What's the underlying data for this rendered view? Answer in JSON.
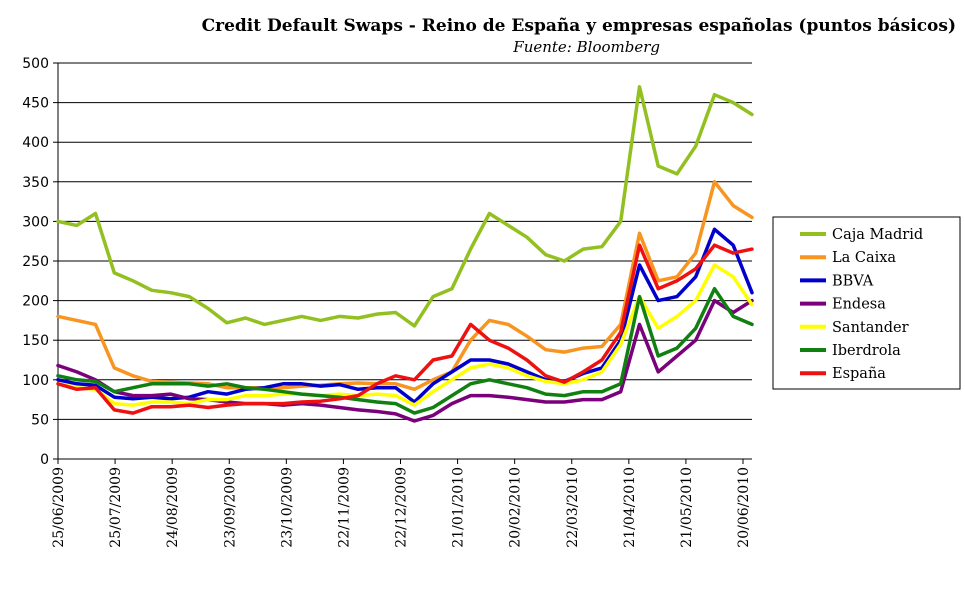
{
  "chart_data": {
    "type": "line",
    "title": "Credit Default Swaps - Reino de España y empresas españolas (puntos básicos)",
    "subtitle": "Fuente: Bloomberg",
    "xlabel": "",
    "ylabel": "",
    "ylim": [
      0,
      500
    ],
    "yticks": [
      "0",
      "50",
      "100",
      "150",
      "200",
      "250",
      "300",
      "350",
      "400",
      "450",
      "500"
    ],
    "x_tick_labels": [
      "25/06/2009",
      "25/07/2009",
      "24/08/2009",
      "23/09/2009",
      "23/10/2009",
      "22/11/2009",
      "22/12/2009",
      "21/01/2010",
      "20/02/2010",
      "22/03/2010",
      "21/04/2010",
      "21/05/2010",
      "20/06/2010"
    ],
    "x": [
      "25/06/2009",
      "05/07/2009",
      "15/07/2009",
      "25/07/2009",
      "04/08/2009",
      "14/08/2009",
      "24/08/2009",
      "03/09/2009",
      "13/09/2009",
      "23/09/2009",
      "03/10/2009",
      "13/10/2009",
      "23/10/2009",
      "02/11/2009",
      "12/11/2009",
      "22/11/2009",
      "02/12/2009",
      "12/12/2009",
      "22/12/2009",
      "01/01/2010",
      "11/01/2010",
      "21/01/2010",
      "31/01/2010",
      "10/02/2010",
      "20/02/2010",
      "02/03/2010",
      "12/03/2010",
      "22/03/2010",
      "01/04/2010",
      "11/04/2010",
      "21/04/2010",
      "01/05/2010",
      "11/05/2010",
      "21/05/2010",
      "31/05/2010",
      "10/06/2010",
      "20/06/2010",
      "25/06/2010"
    ],
    "grid": true,
    "legend_position": "right",
    "series": [
      {
        "name": "Caja Madrid",
        "color": "#92c020",
        "values": [
          300,
          295,
          310,
          235,
          225,
          213,
          210,
          205,
          190,
          172,
          178,
          170,
          175,
          180,
          175,
          180,
          178,
          183,
          185,
          168,
          205,
          215,
          265,
          310,
          295,
          280,
          258,
          250,
          265,
          268,
          300,
          470,
          370,
          360,
          395,
          460,
          450,
          435
        ]
      },
      {
        "name": "La Caixa",
        "color": "#f79520",
        "values": [
          180,
          175,
          170,
          115,
          105,
          98,
          97,
          96,
          95,
          90,
          90,
          90,
          90,
          92,
          93,
          95,
          96,
          95,
          95,
          88,
          100,
          110,
          150,
          175,
          170,
          155,
          138,
          135,
          140,
          142,
          170,
          285,
          225,
          230,
          260,
          350,
          320,
          305
        ]
      },
      {
        "name": "BBVA",
        "color": "#0000cc",
        "values": [
          100,
          95,
          93,
          78,
          76,
          78,
          76,
          78,
          85,
          82,
          88,
          90,
          95,
          95,
          92,
          94,
          88,
          90,
          90,
          72,
          95,
          110,
          125,
          125,
          120,
          110,
          100,
          98,
          108,
          115,
          150,
          245,
          200,
          205,
          230,
          290,
          270,
          210
        ]
      },
      {
        "name": "Endesa",
        "color": "#7b007b",
        "values": [
          118,
          110,
          100,
          85,
          80,
          80,
          82,
          76,
          75,
          72,
          70,
          70,
          68,
          70,
          68,
          65,
          62,
          60,
          57,
          48,
          55,
          70,
          80,
          80,
          78,
          75,
          72,
          72,
          75,
          75,
          85,
          170,
          110,
          130,
          150,
          200,
          185,
          200
        ]
      },
      {
        "name": "Santander",
        "color": "#ffff00",
        "values": [
          95,
          90,
          88,
          70,
          68,
          72,
          72,
          70,
          75,
          75,
          80,
          80,
          82,
          82,
          80,
          82,
          80,
          82,
          80,
          68,
          85,
          100,
          115,
          120,
          115,
          105,
          98,
          95,
          100,
          110,
          145,
          205,
          165,
          180,
          200,
          245,
          230,
          195
        ]
      },
      {
        "name": "Iberdrola",
        "color": "#108010",
        "values": [
          105,
          100,
          98,
          85,
          90,
          95,
          95,
          95,
          92,
          95,
          90,
          88,
          85,
          82,
          80,
          78,
          75,
          72,
          70,
          58,
          65,
          80,
          95,
          100,
          95,
          90,
          82,
          80,
          85,
          85,
          95,
          205,
          130,
          140,
          165,
          215,
          180,
          170
        ]
      },
      {
        "name": "España",
        "color": "#ee1111",
        "values": [
          95,
          88,
          90,
          62,
          58,
          66,
          66,
          68,
          65,
          68,
          70,
          70,
          70,
          72,
          73,
          76,
          80,
          95,
          105,
          100,
          125,
          130,
          170,
          150,
          140,
          125,
          105,
          97,
          110,
          125,
          160,
          270,
          215,
          225,
          240,
          270,
          260,
          265
        ]
      }
    ]
  }
}
